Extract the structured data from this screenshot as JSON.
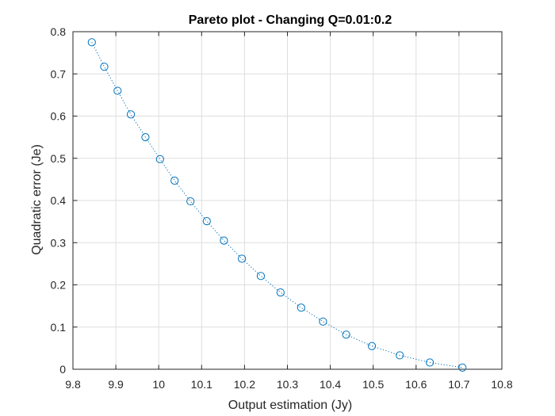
{
  "chart_data": {
    "type": "scatter",
    "title": "Pareto plot - Changing Q=0.01:0.2",
    "xlabel": "Output estimation (Jy)",
    "ylabel": "Quadratic error (Je)",
    "xlim": [
      9.8,
      10.8
    ],
    "ylim": [
      0,
      0.8
    ],
    "xticks": [
      "9.8",
      "9.9",
      "10",
      "10.1",
      "10.2",
      "10.3",
      "10.4",
      "10.5",
      "10.6",
      "10.7",
      "10.8"
    ],
    "yticks": [
      "0",
      "0.1",
      "0.2",
      "0.3",
      "0.4",
      "0.5",
      "0.6",
      "0.7",
      "0.8"
    ],
    "grid": true,
    "marker": "circle",
    "line_style": "dotted",
    "series": [
      {
        "color": "#0072BD",
        "x": [
          9.844,
          9.873,
          9.904,
          9.935,
          9.969,
          10.003,
          10.037,
          10.074,
          10.112,
          10.152,
          10.194,
          10.238,
          10.284,
          10.332,
          10.383,
          10.437,
          10.497,
          10.562,
          10.632,
          10.708
        ],
        "y": [
          0.775,
          0.717,
          0.66,
          0.604,
          0.55,
          0.498,
          0.447,
          0.398,
          0.351,
          0.305,
          0.262,
          0.221,
          0.182,
          0.146,
          0.113,
          0.082,
          0.055,
          0.033,
          0.016,
          0.004
        ]
      }
    ]
  }
}
